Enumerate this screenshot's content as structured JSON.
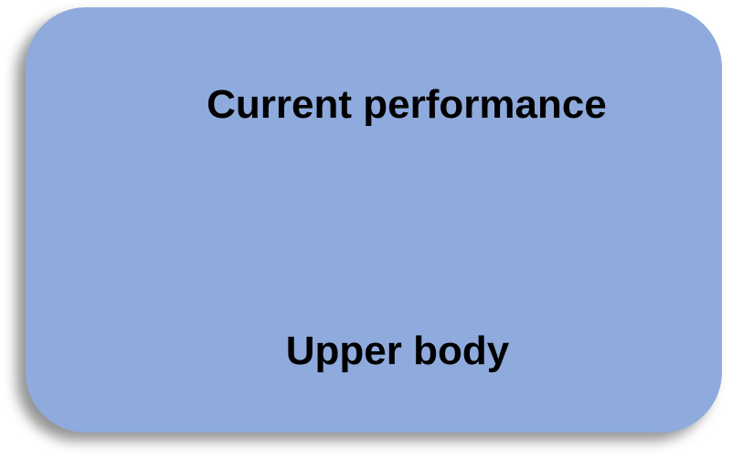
{
  "card": {
    "fill_color": "#8FAADC",
    "title": "Current performance",
    "subtitle": "Upper body"
  }
}
